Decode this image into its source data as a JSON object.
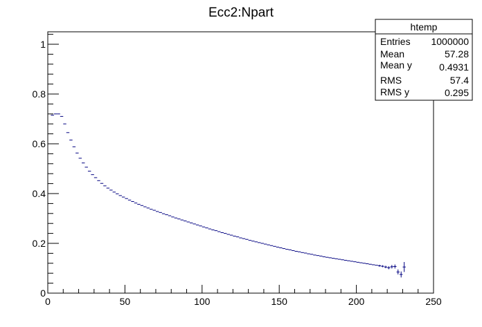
{
  "chart_data": {
    "type": "scatter",
    "title": "Ecc2:Npart",
    "xlabel": "",
    "ylabel": "",
    "xlim": [
      0,
      250
    ],
    "ylim": [
      0,
      1.05
    ],
    "x_ticks": [
      "0",
      "50",
      "100",
      "150",
      "200",
      "250"
    ],
    "y_ticks": [
      "0",
      "0.2",
      "0.4",
      "0.6",
      "0.8",
      "1"
    ],
    "marker_color": "#000080",
    "series": [
      {
        "x": [
          3,
          5,
          7,
          9,
          11,
          13,
          15,
          17,
          19,
          21,
          23,
          25,
          27,
          29,
          31,
          33,
          35,
          37,
          39,
          41,
          43,
          45,
          47,
          49,
          51,
          53,
          55,
          57,
          59,
          61,
          63,
          65,
          67,
          69,
          71,
          73,
          75,
          77,
          79,
          81,
          83,
          85,
          87,
          89,
          91,
          93,
          95,
          97,
          99,
          101,
          103,
          105,
          107,
          109,
          111,
          113,
          115,
          117,
          119,
          121,
          123,
          125,
          127,
          129,
          131,
          133,
          135,
          137,
          139,
          141,
          143,
          145,
          147,
          149,
          151,
          153,
          155,
          157,
          159,
          161,
          163,
          165,
          167,
          169,
          171,
          173,
          175,
          177,
          179,
          181,
          183,
          185,
          187,
          189,
          191,
          193,
          195,
          197,
          199,
          201,
          203,
          205,
          207,
          209,
          211,
          213,
          215,
          217,
          219,
          221,
          223,
          225,
          227,
          229,
          231
        ],
        "y": [
          0.715,
          0.72,
          0.72,
          0.71,
          0.68,
          0.645,
          0.615,
          0.588,
          0.563,
          0.542,
          0.523,
          0.506,
          0.49,
          0.476,
          0.464,
          0.452,
          0.441,
          0.431,
          0.422,
          0.414,
          0.406,
          0.399,
          0.392,
          0.386,
          0.38,
          0.374,
          0.368,
          0.362,
          0.357,
          0.352,
          0.347,
          0.342,
          0.337,
          0.333,
          0.328,
          0.324,
          0.319,
          0.315,
          0.311,
          0.306,
          0.302,
          0.298,
          0.294,
          0.29,
          0.286,
          0.282,
          0.278,
          0.274,
          0.27,
          0.266,
          0.262,
          0.258,
          0.254,
          0.251,
          0.247,
          0.243,
          0.24,
          0.236,
          0.233,
          0.229,
          0.226,
          0.222,
          0.219,
          0.216,
          0.212,
          0.209,
          0.206,
          0.203,
          0.2,
          0.197,
          0.194,
          0.191,
          0.188,
          0.185,
          0.182,
          0.179,
          0.176,
          0.174,
          0.171,
          0.168,
          0.166,
          0.163,
          0.161,
          0.158,
          0.156,
          0.153,
          0.151,
          0.149,
          0.146,
          0.144,
          0.142,
          0.14,
          0.138,
          0.136,
          0.134,
          0.132,
          0.13,
          0.128,
          0.126,
          0.124,
          0.122,
          0.12,
          0.118,
          0.116,
          0.114,
          0.112,
          0.11,
          0.108,
          0.105,
          0.102,
          0.106,
          0.107,
          0.085,
          0.075,
          0.105
        ],
        "yerr": [
          0.002,
          0.002,
          0.002,
          0.002,
          0.002,
          0.002,
          0.002,
          0.002,
          0.002,
          0.002,
          0.002,
          0.002,
          0.002,
          0.002,
          0.002,
          0.002,
          0.002,
          0.002,
          0.002,
          0.002,
          0.002,
          0.002,
          0.002,
          0.002,
          0.002,
          0.002,
          0.002,
          0.002,
          0.002,
          0.002,
          0.002,
          0.002,
          0.002,
          0.002,
          0.002,
          0.002,
          0.002,
          0.002,
          0.002,
          0.002,
          0.002,
          0.002,
          0.002,
          0.002,
          0.002,
          0.002,
          0.002,
          0.002,
          0.002,
          0.002,
          0.002,
          0.002,
          0.002,
          0.002,
          0.002,
          0.002,
          0.002,
          0.002,
          0.002,
          0.002,
          0.002,
          0.002,
          0.002,
          0.002,
          0.002,
          0.002,
          0.002,
          0.002,
          0.002,
          0.002,
          0.002,
          0.002,
          0.002,
          0.002,
          0.002,
          0.002,
          0.002,
          0.002,
          0.002,
          0.002,
          0.002,
          0.002,
          0.002,
          0.002,
          0.002,
          0.002,
          0.002,
          0.002,
          0.002,
          0.002,
          0.002,
          0.002,
          0.002,
          0.002,
          0.002,
          0.002,
          0.002,
          0.002,
          0.002,
          0.002,
          0.002,
          0.002,
          0.002,
          0.002,
          0.003,
          0.003,
          0.004,
          0.004,
          0.005,
          0.006,
          0.007,
          0.008,
          0.01,
          0.012,
          0.02
        ]
      }
    ],
    "stats_box": {
      "title": "htemp",
      "rows": [
        {
          "label": "Entries",
          "value": "1000000"
        },
        {
          "label": "Mean",
          "value": "57.28"
        },
        {
          "label": "Mean y",
          "value": "0.4931"
        },
        {
          "label": "RMS",
          "value": "57.4"
        },
        {
          "label": "RMS y",
          "value": "0.295"
        }
      ]
    }
  }
}
